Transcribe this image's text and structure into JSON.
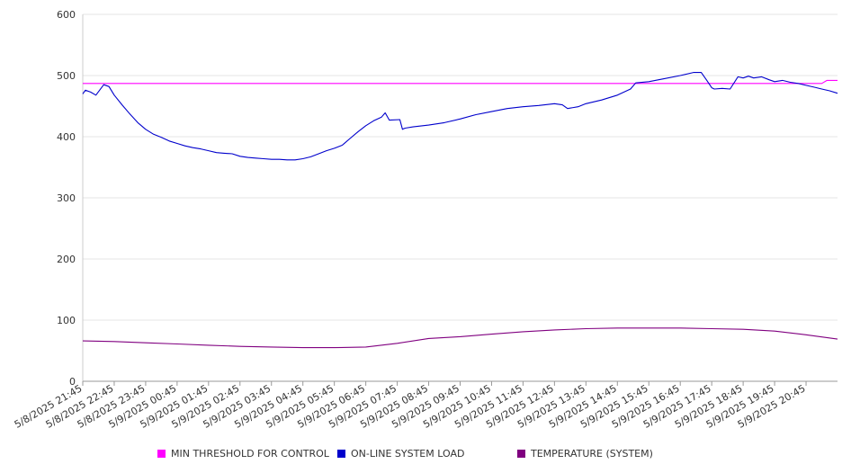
{
  "chart_data": {
    "type": "line",
    "title": "",
    "xlabel": "",
    "ylabel": "",
    "ylim": [
      0,
      600
    ],
    "y_ticks": [
      0,
      100,
      200,
      300,
      400,
      500,
      600
    ],
    "grid": true,
    "legend_position": "bottom",
    "x_tick_labels": [
      "5/8/2025 21:45",
      "5/8/2025 22:45",
      "5/8/2025 23:45",
      "5/9/2025 00:45",
      "5/9/2025 01:45",
      "5/9/2025 02:45",
      "5/9/2025 03:45",
      "5/9/2025 04:45",
      "5/9/2025 05:45",
      "5/9/2025 06:45",
      "5/9/2025 07:45",
      "5/9/2025 08:45",
      "5/9/2025 09:45",
      "5/9/2025 10:45",
      "5/9/2025 11:45",
      "5/9/2025 12:45",
      "5/9/2025 13:45",
      "5/9/2025 14:45",
      "5/9/2025 15:45",
      "5/9/2025 16:45",
      "5/9/2025 17:45",
      "5/9/2025 18:45",
      "5/9/2025 19:45",
      "5/9/2025 20:45"
    ],
    "x_start": "5/8/2025 21:45",
    "x_end": "5/9/2025 21:45",
    "series": [
      {
        "name": "MIN THRESHOLD FOR CONTROL",
        "color": "#ff00ff",
        "points": [
          [
            "5/8/2025 21:45",
            487
          ],
          [
            "5/9/2025 21:15",
            487
          ],
          [
            "5/9/2025 21:25",
            492
          ],
          [
            "5/9/2025 21:45",
            492
          ]
        ]
      },
      {
        "name": "ON-LINE SYSTEM LOAD",
        "color": "#0000cc",
        "points": [
          [
            "5/8/2025 21:45",
            470
          ],
          [
            "5/8/2025 21:50",
            476
          ],
          [
            "5/8/2025 22:00",
            473
          ],
          [
            "5/8/2025 22:10",
            468
          ],
          [
            "5/8/2025 22:25",
            485
          ],
          [
            "5/8/2025 22:35",
            482
          ],
          [
            "5/8/2025 22:45",
            468
          ],
          [
            "5/8/2025 23:00",
            452
          ],
          [
            "5/8/2025 23:15",
            437
          ],
          [
            "5/8/2025 23:30",
            423
          ],
          [
            "5/8/2025 23:45",
            412
          ],
          [
            "5/9/2025 00:00",
            404
          ],
          [
            "5/9/2025 00:15",
            399
          ],
          [
            "5/9/2025 00:30",
            393
          ],
          [
            "5/9/2025 00:45",
            389
          ],
          [
            "5/9/2025 01:00",
            385
          ],
          [
            "5/9/2025 01:15",
            382
          ],
          [
            "5/9/2025 01:30",
            380
          ],
          [
            "5/9/2025 01:45",
            377
          ],
          [
            "5/9/2025 02:00",
            374
          ],
          [
            "5/9/2025 02:15",
            373
          ],
          [
            "5/9/2025 02:30",
            372
          ],
          [
            "5/9/2025 02:45",
            368
          ],
          [
            "5/9/2025 03:00",
            366
          ],
          [
            "5/9/2025 03:15",
            365
          ],
          [
            "5/9/2025 03:30",
            364
          ],
          [
            "5/9/2025 03:45",
            363
          ],
          [
            "5/9/2025 04:00",
            363
          ],
          [
            "5/9/2025 04:15",
            362
          ],
          [
            "5/9/2025 04:30",
            362
          ],
          [
            "5/9/2025 04:45",
            364
          ],
          [
            "5/9/2025 05:00",
            367
          ],
          [
            "5/9/2025 05:15",
            372
          ],
          [
            "5/9/2025 05:30",
            377
          ],
          [
            "5/9/2025 05:45",
            381
          ],
          [
            "5/9/2025 06:00",
            386
          ],
          [
            "5/9/2025 06:15",
            397
          ],
          [
            "5/9/2025 06:30",
            408
          ],
          [
            "5/9/2025 06:45",
            418
          ],
          [
            "5/9/2025 07:00",
            426
          ],
          [
            "5/9/2025 07:15",
            432
          ],
          [
            "5/9/2025 07:22",
            439
          ],
          [
            "5/9/2025 07:30",
            427
          ],
          [
            "5/9/2025 07:50",
            428
          ],
          [
            "5/9/2025 07:55",
            412
          ],
          [
            "5/9/2025 08:00",
            414
          ],
          [
            "5/9/2025 08:15",
            416
          ],
          [
            "5/9/2025 08:45",
            419
          ],
          [
            "5/9/2025 09:15",
            423
          ],
          [
            "5/9/2025 09:45",
            429
          ],
          [
            "5/9/2025 10:15",
            436
          ],
          [
            "5/9/2025 10:45",
            441
          ],
          [
            "5/9/2025 11:15",
            446
          ],
          [
            "5/9/2025 11:45",
            449
          ],
          [
            "5/9/2025 12:15",
            451
          ],
          [
            "5/9/2025 12:45",
            454
          ],
          [
            "5/9/2025 13:00",
            452
          ],
          [
            "5/9/2025 13:10",
            446
          ],
          [
            "5/9/2025 13:30",
            449
          ],
          [
            "5/9/2025 13:45",
            454
          ],
          [
            "5/9/2025 14:15",
            460
          ],
          [
            "5/9/2025 14:45",
            468
          ],
          [
            "5/9/2025 15:10",
            478
          ],
          [
            "5/9/2025 15:20",
            488
          ],
          [
            "5/9/2025 15:45",
            490
          ],
          [
            "5/9/2025 16:15",
            495
          ],
          [
            "5/9/2025 16:45",
            500
          ],
          [
            "5/9/2025 17:10",
            505
          ],
          [
            "5/9/2025 17:25",
            505
          ],
          [
            "5/9/2025 17:35",
            493
          ],
          [
            "5/9/2025 17:45",
            480
          ],
          [
            "5/9/2025 17:50",
            478
          ],
          [
            "5/9/2025 18:05",
            479
          ],
          [
            "5/9/2025 18:20",
            478
          ],
          [
            "5/9/2025 18:35",
            498
          ],
          [
            "5/9/2025 18:45",
            496
          ],
          [
            "5/9/2025 18:55",
            499
          ],
          [
            "5/9/2025 19:05",
            496
          ],
          [
            "5/9/2025 19:20",
            498
          ],
          [
            "5/9/2025 19:35",
            493
          ],
          [
            "5/9/2025 19:45",
            490
          ],
          [
            "5/9/2025 20:00",
            492
          ],
          [
            "5/9/2025 20:15",
            489
          ],
          [
            "5/9/2025 20:30",
            487
          ],
          [
            "5/9/2025 20:45",
            484
          ],
          [
            "5/9/2025 21:00",
            481
          ],
          [
            "5/9/2025 21:15",
            478
          ],
          [
            "5/9/2025 21:30",
            475
          ],
          [
            "5/9/2025 21:45",
            471
          ]
        ]
      },
      {
        "name": "TEMPERATURE (SYSTEM)",
        "color": "#800080",
        "points": [
          [
            "5/8/2025 21:45",
            66
          ],
          [
            "5/8/2025 22:45",
            65
          ],
          [
            "5/8/2025 23:45",
            63
          ],
          [
            "5/9/2025 00:45",
            61
          ],
          [
            "5/9/2025 01:45",
            59
          ],
          [
            "5/9/2025 02:45",
            57
          ],
          [
            "5/9/2025 03:45",
            56
          ],
          [
            "5/9/2025 04:45",
            55
          ],
          [
            "5/9/2025 05:45",
            55
          ],
          [
            "5/9/2025 06:45",
            56
          ],
          [
            "5/9/2025 07:45",
            62
          ],
          [
            "5/9/2025 08:45",
            70
          ],
          [
            "5/9/2025 09:45",
            73
          ],
          [
            "5/9/2025 10:45",
            77
          ],
          [
            "5/9/2025 11:45",
            81
          ],
          [
            "5/9/2025 12:45",
            84
          ],
          [
            "5/9/2025 13:45",
            86
          ],
          [
            "5/9/2025 14:45",
            87
          ],
          [
            "5/9/2025 15:45",
            87
          ],
          [
            "5/9/2025 16:45",
            87
          ],
          [
            "5/9/2025 17:45",
            86
          ],
          [
            "5/9/2025 18:45",
            85
          ],
          [
            "5/9/2025 19:45",
            82
          ],
          [
            "5/9/2025 20:45",
            76
          ],
          [
            "5/9/2025 21:45",
            69
          ]
        ]
      }
    ]
  }
}
